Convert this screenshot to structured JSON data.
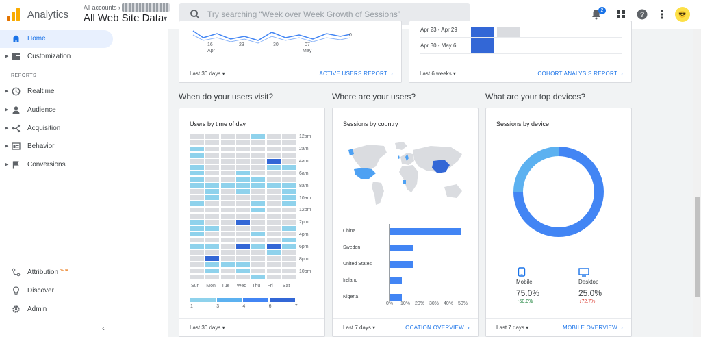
{
  "header": {
    "app_name": "Analytics",
    "account_small": "All accounts",
    "property": "All Web Site Data",
    "search_placeholder": "Try searching “Week over Week Growth of Sessions”",
    "notification_count": "2"
  },
  "sidebar": {
    "items": [
      {
        "label": "Home"
      },
      {
        "label": "Customization"
      },
      {
        "label": "Realtime"
      },
      {
        "label": "Audience"
      },
      {
        "label": "Acquisition"
      },
      {
        "label": "Behavior"
      },
      {
        "label": "Conversions"
      },
      {
        "label": "Attribution"
      },
      {
        "label": "Discover"
      },
      {
        "label": "Admin"
      }
    ],
    "section_reports": "REPORTS",
    "beta": "BETA"
  },
  "top_cards": {
    "active_users": {
      "x_ticks": [
        "16\nApr",
        "23",
        "30",
        "07\nMay"
      ],
      "x_tick_a": "16",
      "x_tick_a2": "Apr",
      "x_tick_b": "23",
      "x_tick_c": "30",
      "x_tick_d": "07",
      "x_tick_d2": "May",
      "y_zero": "0",
      "footer_range": "Last 30 days",
      "footer_link": "ACTIVE USERS REPORT"
    },
    "cohort": {
      "rows": [
        "Apr 23 - Apr 29",
        "Apr 30 - May 6"
      ],
      "footer_range": "Last 6 weeks",
      "footer_link": "COHORT ANALYSIS REPORT"
    }
  },
  "sections": {
    "visit_q": "When do your users visit?",
    "where_q": "Where are your users?",
    "devices_q": "What are your top devices?"
  },
  "heatmap": {
    "title": "Users by time of day",
    "hours": [
      "12am",
      "2am",
      "4am",
      "6am",
      "8am",
      "10am",
      "12pm",
      "2pm",
      "4pm",
      "6pm",
      "8pm",
      "10pm"
    ],
    "days": [
      "Sun",
      "Mon",
      "Tue",
      "Wed",
      "Thu",
      "Fri",
      "Sat"
    ],
    "legend": [
      "1",
      "3",
      "4",
      "6",
      "7"
    ],
    "footer_range": "Last 30 days"
  },
  "country": {
    "title": "Sessions by country",
    "footer_range": "Last 7 days",
    "footer_link": "LOCATION OVERVIEW"
  },
  "device": {
    "title": "Sessions by device",
    "mobile_label": "Mobile",
    "mobile_pct": "75.0%",
    "mobile_change": "↑50.0%",
    "desktop_label": "Desktop",
    "desktop_pct": "25.0%",
    "desktop_change": "↓72.7%",
    "footer_range": "Last 7 days",
    "footer_link": "MOBILE OVERVIEW"
  },
  "colors": {
    "accent": "#1a73e8",
    "heat_low": "#dadce0",
    "heat_mid": "#8fd2ec",
    "heat_high": "#3367d6",
    "mobile": "#4285f4",
    "desktop": "#5cb1f0",
    "up": "#188038",
    "down": "#d93025"
  },
  "chart_data": [
    {
      "type": "bar",
      "title": "Sessions by country",
      "categories": [
        "China",
        "Sweden",
        "United States",
        "Ireland",
        "Nigeria"
      ],
      "values": [
        50,
        17,
        17,
        9,
        9
      ],
      "x_ticks": [
        "0%",
        "10%",
        "20%",
        "30%",
        "40%",
        "50%"
      ],
      "xlim": [
        0,
        50
      ],
      "orientation": "horizontal"
    },
    {
      "type": "pie",
      "title": "Sessions by device",
      "categories": [
        "Mobile",
        "Desktop"
      ],
      "values": [
        75.0,
        25.0
      ]
    }
  ]
}
